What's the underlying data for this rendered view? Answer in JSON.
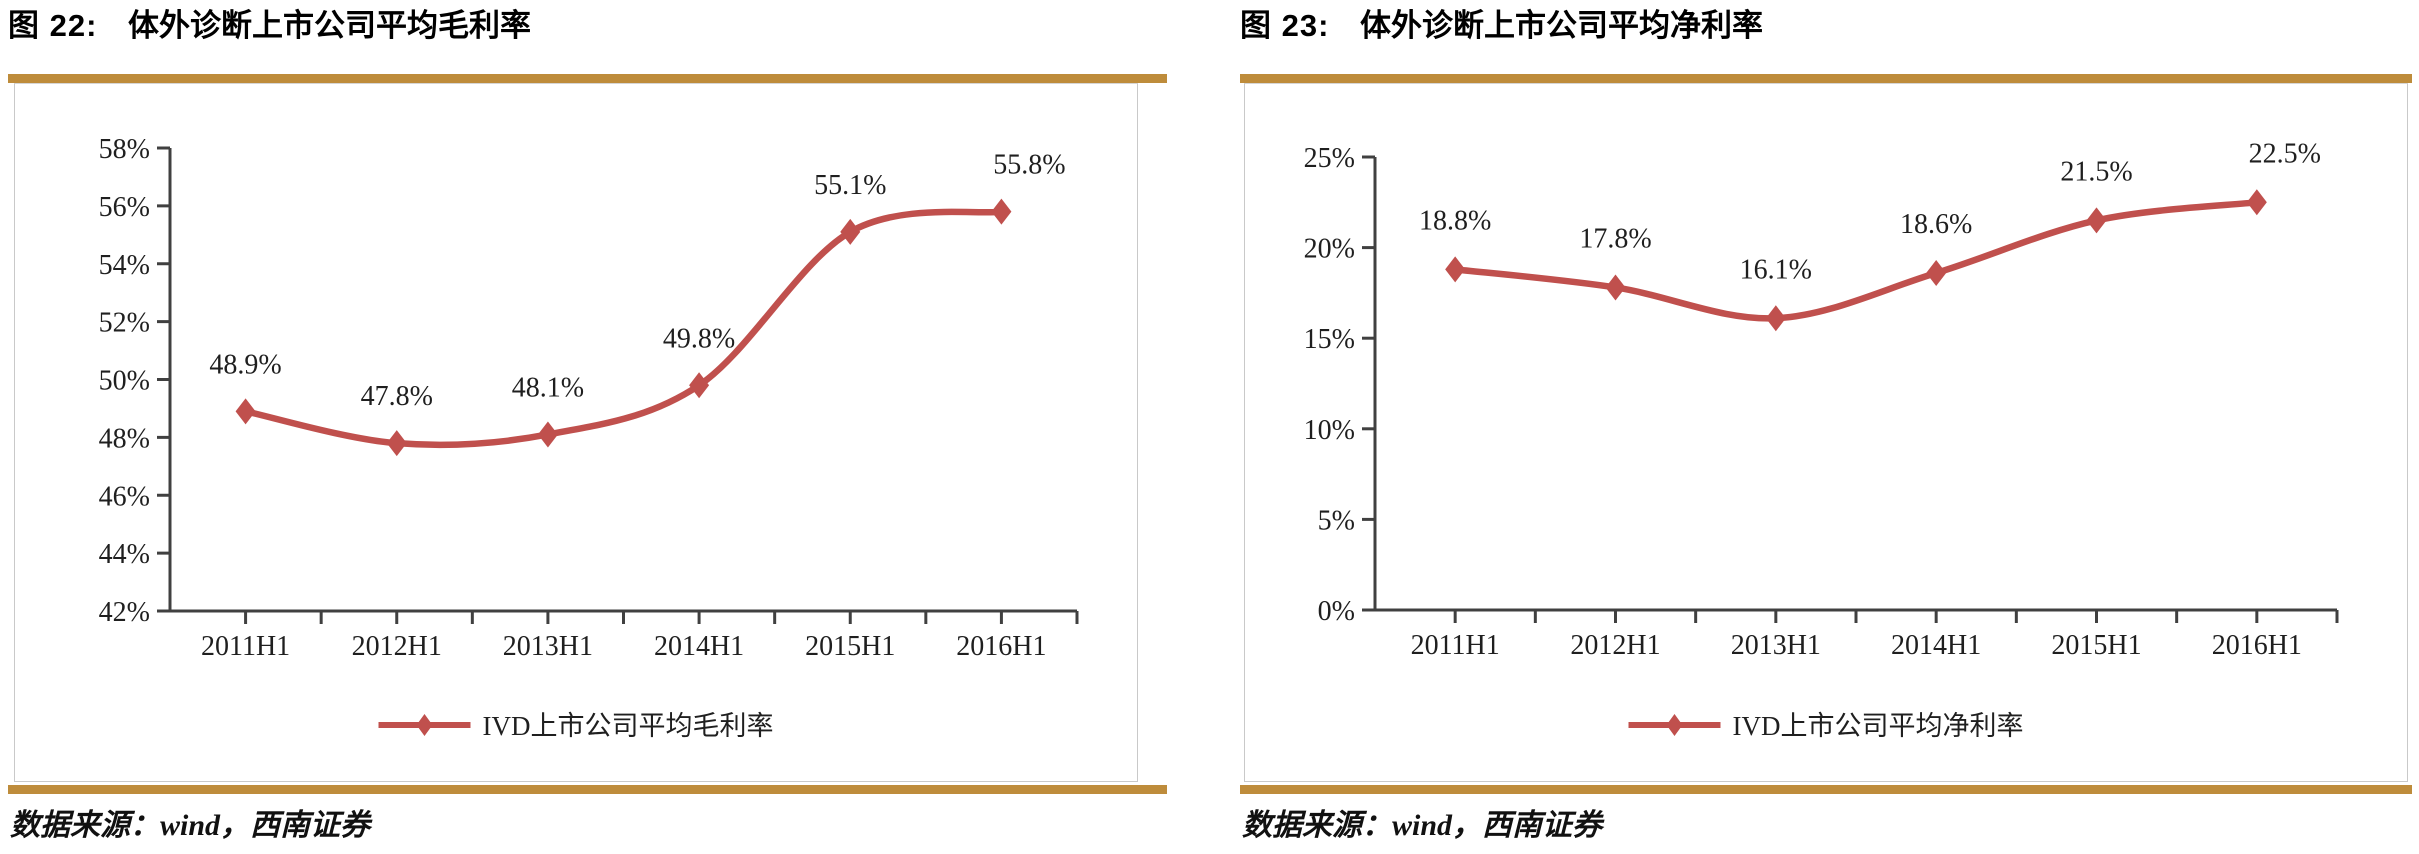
{
  "page": {
    "background": "#ffffff",
    "accent_gold": "#BE8C3B",
    "axis_color": "#404040",
    "line_color": "#C0504D"
  },
  "chart_data": [
    {
      "type": "line",
      "figure_label": "图 22:",
      "title": "体外诊断上市公司平均毛利率",
      "categories": [
        "2011H1",
        "2012H1",
        "2013H1",
        "2014H1",
        "2015H1",
        "2016H1"
      ],
      "series": [
        {
          "name": "IVD上市公司平均毛利率",
          "values": [
            48.9,
            47.8,
            48.1,
            49.8,
            55.1,
            55.8
          ],
          "color": "#C0504D"
        }
      ],
      "data_labels": [
        "48.9%",
        "47.8%",
        "48.1%",
        "49.8%",
        "55.1%",
        "55.8%"
      ],
      "ylim": [
        42,
        58
      ],
      "ytick_step": 2,
      "ytick_suffix": "%",
      "grid": false,
      "smooth": true,
      "marker": "diamond",
      "legend": "IVD上市公司平均毛利率",
      "legend_position": "bottom",
      "source": "数据来源：wind，西南证券"
    },
    {
      "type": "line",
      "figure_label": "图 23:",
      "title": "体外诊断上市公司平均净利率",
      "categories": [
        "2011H1",
        "2012H1",
        "2013H1",
        "2014H1",
        "2015H1",
        "2016H1"
      ],
      "series": [
        {
          "name": "IVD上市公司平均净利率",
          "values": [
            18.8,
            17.8,
            16.1,
            18.6,
            21.5,
            22.5
          ],
          "color": "#C0504D"
        }
      ],
      "data_labels": [
        "18.8%",
        "17.8%",
        "16.1%",
        "18.6%",
        "21.5%",
        "22.5%"
      ],
      "ylim": [
        0,
        25
      ],
      "ytick_step": 5,
      "ytick_suffix": "%",
      "grid": false,
      "smooth": true,
      "marker": "diamond",
      "legend": "IVD上市公司平均净利率",
      "legend_position": "bottom",
      "source": "数据来源：wind，西南证券"
    }
  ]
}
